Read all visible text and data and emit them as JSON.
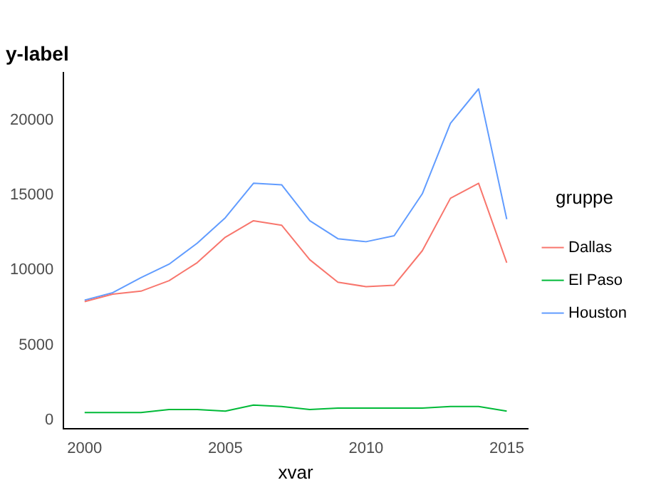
{
  "chart_data": {
    "type": "line",
    "ylabel": "y-label",
    "xlabel": "xvar",
    "legend_title": "gruppe",
    "legend": "right",
    "grid": false,
    "marker": "none",
    "line_style": "solid",
    "x": [
      2000,
      2001,
      2002,
      2003,
      2004,
      2005,
      2006,
      2007,
      2008,
      2009,
      2010,
      2011,
      2012,
      2013,
      2014,
      2015
    ],
    "xlim": [
      1999.25,
      2015.75
    ],
    "xticks": [
      2000,
      2005,
      2010,
      2015
    ],
    "ylim": [
      -600,
      23200
    ],
    "yticks": [
      0,
      5000,
      10000,
      15000,
      20000
    ],
    "series": [
      {
        "name": "Dallas",
        "color": "#f8766d",
        "values": [
          7900,
          8400,
          8600,
          9300,
          10500,
          12200,
          13300,
          13000,
          10700,
          9200,
          8900,
          9000,
          11300,
          14800,
          15800,
          10500
        ]
      },
      {
        "name": "El Paso",
        "color": "#00ba38",
        "values": [
          500,
          500,
          500,
          700,
          700,
          600,
          1000,
          900,
          700,
          800,
          800,
          800,
          800,
          900,
          900,
          600
        ]
      },
      {
        "name": "Houston",
        "color": "#619cff",
        "values": [
          8000,
          8500,
          9500,
          10400,
          11800,
          13500,
          15800,
          15700,
          13300,
          12100,
          11900,
          12300,
          15100,
          19800,
          22100,
          13400
        ]
      }
    ]
  }
}
